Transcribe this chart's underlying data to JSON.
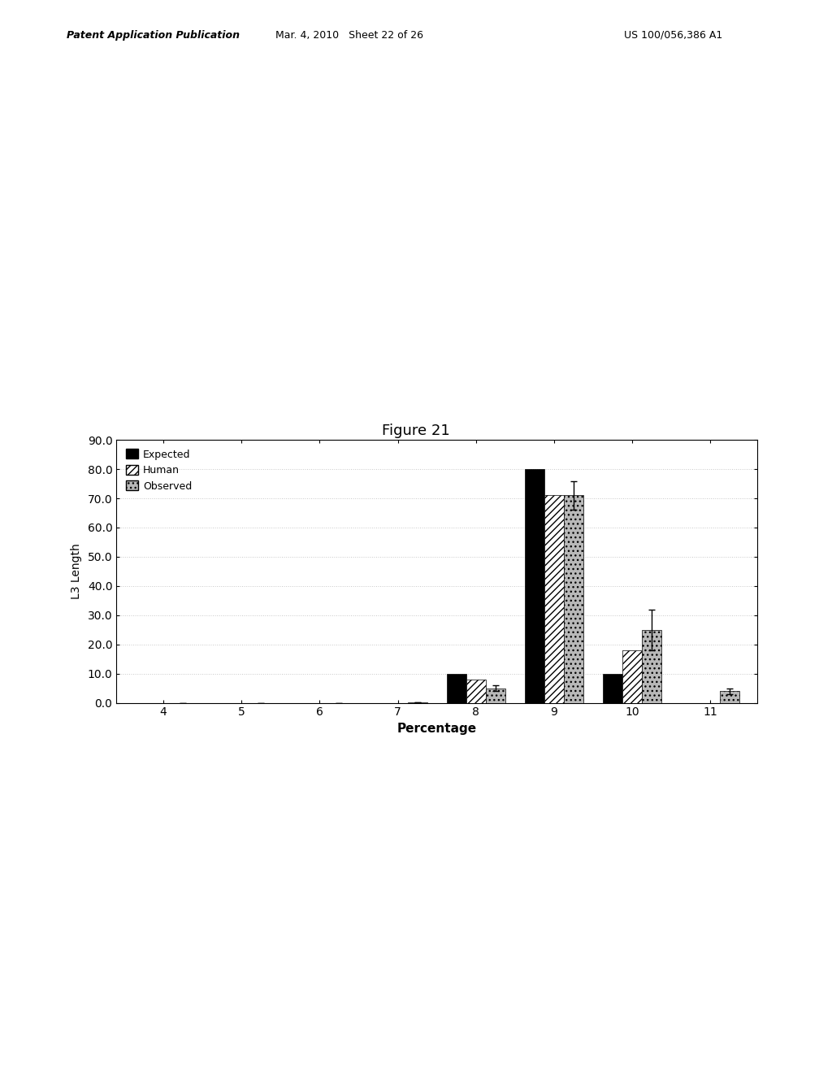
{
  "title": "Figure 21",
  "xlabel": "Percentage",
  "ylabel": "L3 Length",
  "categories": [
    4,
    5,
    6,
    7,
    8,
    9,
    10,
    11
  ],
  "expected": [
    0.0,
    0.0,
    0.0,
    0.0,
    10.0,
    80.0,
    10.0,
    0.0
  ],
  "human": [
    0.0,
    0.0,
    0.0,
    0.0,
    8.0,
    71.0,
    18.0,
    0.0
  ],
  "observed": [
    0.0,
    0.0,
    0.0,
    0.2,
    5.0,
    71.0,
    25.0,
    4.0
  ],
  "observed_err": [
    0.0,
    0.0,
    0.0,
    0.0,
    1.0,
    5.0,
    7.0,
    1.0
  ],
  "ylim": [
    0.0,
    90.0
  ],
  "yticks": [
    0.0,
    10.0,
    20.0,
    30.0,
    40.0,
    50.0,
    60.0,
    70.0,
    80.0,
    90.0
  ],
  "bar_width": 0.25,
  "background_color": "#ffffff",
  "grid_color": "#c8c8c8",
  "expected_color": "#000000",
  "header_left": "Patent Application Publication",
  "header_mid": "Mar. 4, 2010   Sheet 22 of 26",
  "header_right": "US 100/056,386 A1"
}
